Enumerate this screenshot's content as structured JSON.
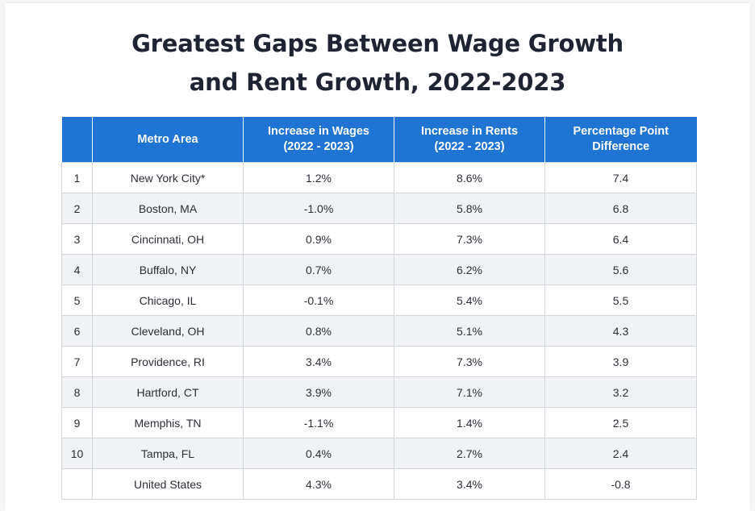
{
  "title_line1": "Greatest Gaps Between Wage Growth",
  "title_line2": "and Rent Growth, 2022-2023",
  "colors": {
    "header_bg": "#1f74d4",
    "header_text": "#ffffff",
    "stripe": "#f1f2f4",
    "title": "#1f2433"
  },
  "chart_data": {
    "type": "table",
    "title": "Greatest Gaps Between Wage Growth and Rent Growth, 2022-2023",
    "columns": [
      "",
      "Metro Area",
      "Increase in Wages (2022 - 2023)",
      "Increase in Rents (2022 - 2023)",
      "Percentage Point Difference"
    ],
    "header": {
      "rank": "",
      "metro": "Metro Area",
      "wages_l1": "Increase in Wages",
      "wages_l2": "(2022 - 2023)",
      "rents_l1": "Increase in Rents",
      "rents_l2": "(2022 - 2023)",
      "diff_l1": "Percentage Point",
      "diff_l2": "Difference"
    },
    "rows": [
      {
        "rank": "1",
        "metro": "New York City*",
        "wages": "1.2%",
        "rents": "8.6%",
        "diff": "7.4"
      },
      {
        "rank": "2",
        "metro": "Boston, MA",
        "wages": "-1.0%",
        "rents": "5.8%",
        "diff": "6.8"
      },
      {
        "rank": "3",
        "metro": "Cincinnati, OH",
        "wages": "0.9%",
        "rents": "7.3%",
        "diff": "6.4"
      },
      {
        "rank": "4",
        "metro": "Buffalo, NY",
        "wages": "0.7%",
        "rents": "6.2%",
        "diff": "5.6"
      },
      {
        "rank": "5",
        "metro": "Chicago, IL",
        "wages": "-0.1%",
        "rents": "5.4%",
        "diff": "5.5"
      },
      {
        "rank": "6",
        "metro": "Cleveland, OH",
        "wages": "0.8%",
        "rents": "5.1%",
        "diff": "4.3"
      },
      {
        "rank": "7",
        "metro": "Providence, RI",
        "wages": "3.4%",
        "rents": "7.3%",
        "diff": "3.9"
      },
      {
        "rank": "8",
        "metro": "Hartford, CT",
        "wages": "3.9%",
        "rents": "7.1%",
        "diff": "3.2"
      },
      {
        "rank": "9",
        "metro": "Memphis, TN",
        "wages": "-1.1%",
        "rents": "1.4%",
        "diff": "2.5"
      },
      {
        "rank": "10",
        "metro": "Tampa, FL",
        "wages": "0.4%",
        "rents": "2.7%",
        "diff": "2.4"
      },
      {
        "rank": "",
        "metro": "United States",
        "wages": "4.3%",
        "rents": "3.4%",
        "diff": "-0.8"
      }
    ]
  }
}
